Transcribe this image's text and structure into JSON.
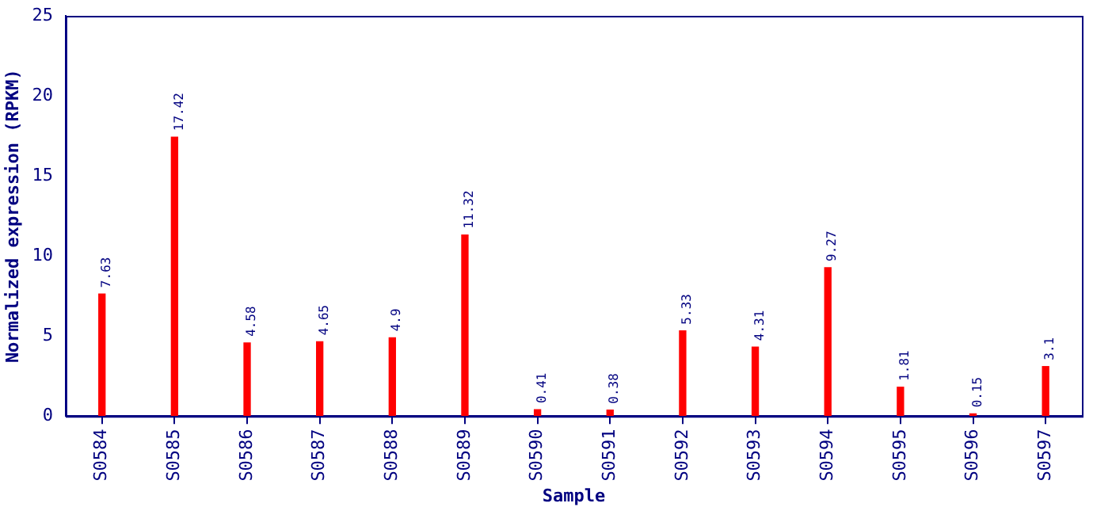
{
  "chart_data": {
    "type": "bar",
    "xlabel": "Sample",
    "ylabel": "Normalized expression (RPKM)",
    "categories": [
      "S0584",
      "S0585",
      "S0586",
      "S0587",
      "S0588",
      "S0589",
      "S0590",
      "S0591",
      "S0592",
      "S0593",
      "S0594",
      "S0595",
      "S0596",
      "S0597"
    ],
    "values": [
      7.63,
      17.42,
      4.58,
      4.65,
      4.9,
      11.32,
      0.41,
      0.38,
      5.33,
      4.31,
      9.27,
      1.81,
      0.15,
      3.1
    ],
    "color": "#ff0000",
    "ylim": [
      0,
      25
    ],
    "yticks": [
      0,
      5,
      10,
      15,
      20,
      25
    ],
    "grid": false,
    "legend": false,
    "data_labels": true
  }
}
